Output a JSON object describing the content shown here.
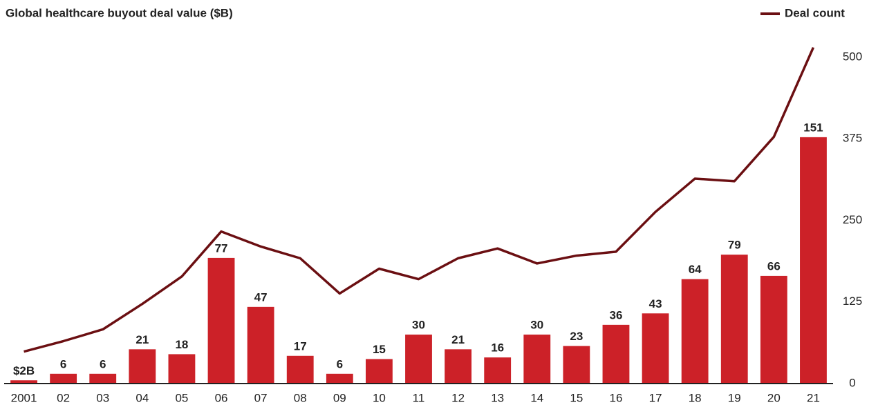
{
  "chart_data": {
    "type": "bar",
    "title": "Global healthcare buyout deal value ($B)",
    "categories": [
      "2001",
      "02",
      "03",
      "04",
      "05",
      "06",
      "07",
      "08",
      "09",
      "10",
      "11",
      "12",
      "13",
      "14",
      "15",
      "16",
      "17",
      "18",
      "19",
      "20",
      "21"
    ],
    "ylim": [
      0,
      200
    ],
    "y2lim": [
      0,
      500
    ],
    "y2ticks": [
      0,
      125,
      250,
      375,
      500
    ],
    "legend": "top-right",
    "series": [
      {
        "type": "bar",
        "color": "#cc2128",
        "values": [
          2,
          6,
          6,
          21,
          18,
          77,
          47,
          17,
          6,
          15,
          30,
          21,
          16,
          30,
          23,
          36,
          43,
          64,
          79,
          66,
          151
        ],
        "value_labels": [
          "$2B",
          "6",
          "6",
          "21",
          "18",
          "77",
          "47",
          "17",
          "6",
          "15",
          "30",
          "21",
          "16",
          "30",
          "23",
          "36",
          "43",
          "64",
          "79",
          "66",
          "151"
        ]
      },
      {
        "type": "line",
        "name": "Deal count",
        "axis": "y2",
        "color": "#6b0f12",
        "values": [
          49,
          65,
          83,
          122,
          164,
          233,
          210,
          192,
          138,
          176,
          160,
          192,
          207,
          184,
          196,
          202,
          263,
          314,
          310,
          378,
          515
        ]
      }
    ]
  }
}
